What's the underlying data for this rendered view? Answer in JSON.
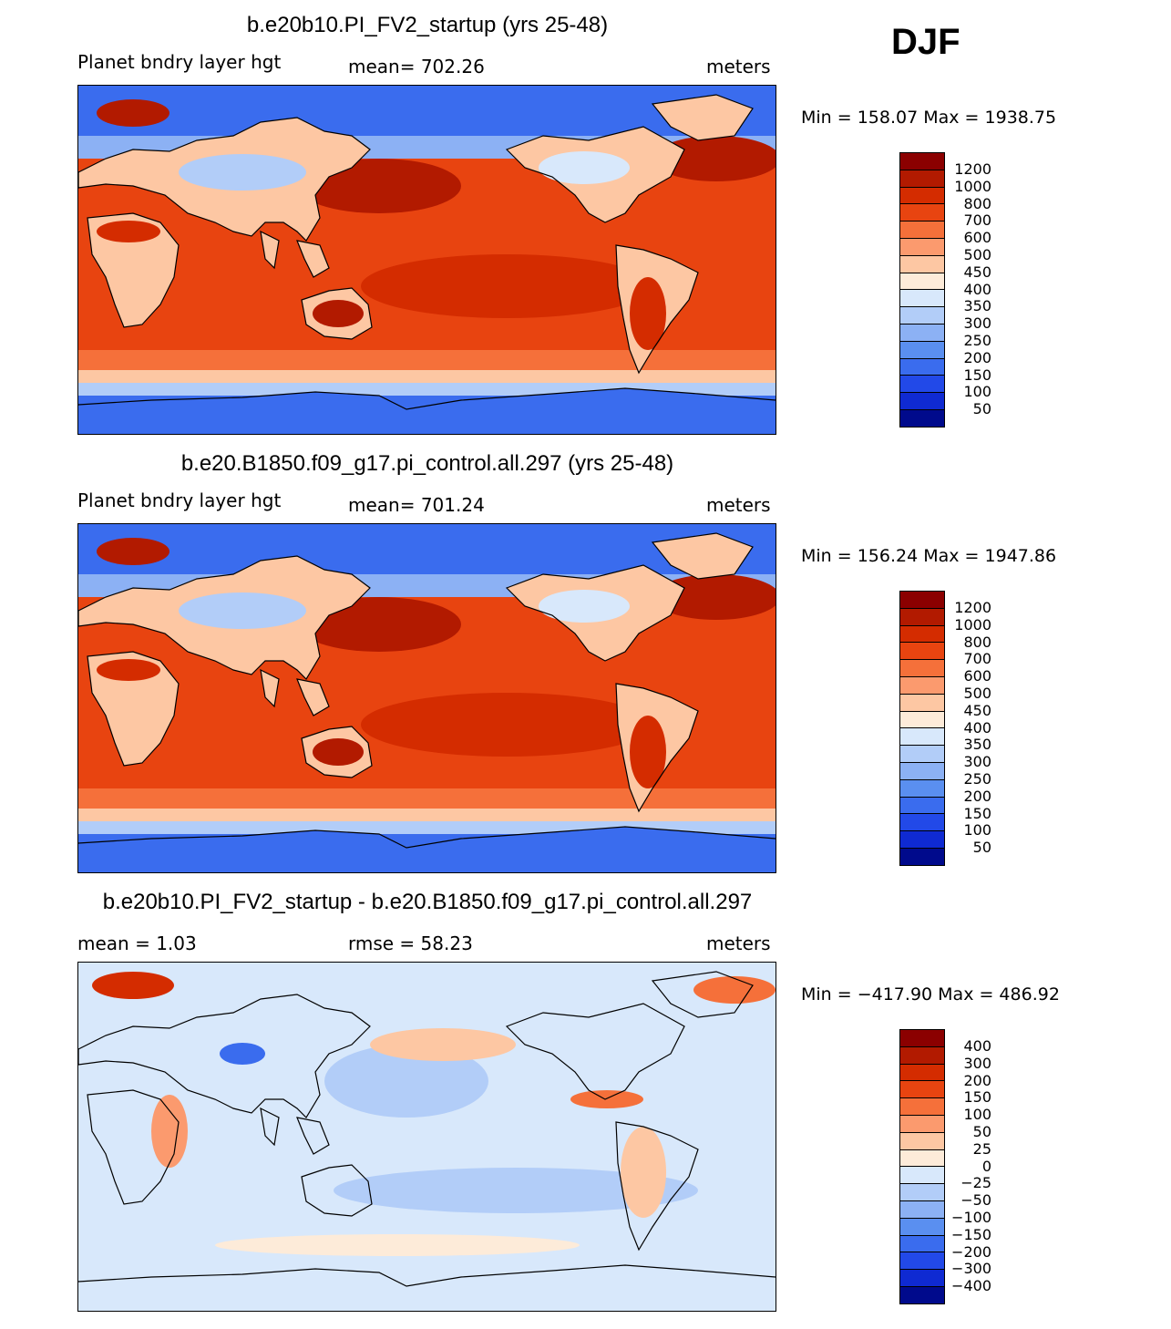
{
  "season": "DJF",
  "panels": [
    {
      "title": "b.e20b10.PI_FV2_startup (yrs 25-48)",
      "variable": "Planet bndry layer hgt",
      "stat_text": "mean=  702.26",
      "units": "meters",
      "minmax": "Min  =  158.07  Max  =  1938.75",
      "legend_labels": [
        "1200",
        "1000",
        "800",
        "700",
        "600",
        "500",
        "450",
        "400",
        "350",
        "300",
        "250",
        "200",
        "150",
        "100",
        "50"
      ],
      "legend_colors": [
        "#8b0000",
        "#b21a00",
        "#d42c00",
        "#e84410",
        "#f5703a",
        "#fb9a6e",
        "#fdc7a3",
        "#fdebd9",
        "#d8e8fb",
        "#b2cdf8",
        "#8cb1f4",
        "#5a8ff0",
        "#3a6cee",
        "#2249e8",
        "#0f2ad2",
        "#000a8c"
      ],
      "field": "base",
      "mean_value": 702.26
    },
    {
      "title": "b.e20.B1850.f09_g17.pi_control.all.297 (yrs 25-48)",
      "variable": "Planet bndry layer hgt",
      "stat_text": "mean=  701.24",
      "units": "meters",
      "minmax": "Min  =  156.24  Max  =  1947.86",
      "legend_labels": [
        "1200",
        "1000",
        "800",
        "700",
        "600",
        "500",
        "450",
        "400",
        "350",
        "300",
        "250",
        "200",
        "150",
        "100",
        "50"
      ],
      "legend_colors": [
        "#8b0000",
        "#b21a00",
        "#d42c00",
        "#e84410",
        "#f5703a",
        "#fb9a6e",
        "#fdc7a3",
        "#fdebd9",
        "#d8e8fb",
        "#b2cdf8",
        "#8cb1f4",
        "#5a8ff0",
        "#3a6cee",
        "#2249e8",
        "#0f2ad2",
        "#000a8c"
      ],
      "field": "base",
      "mean_value": 701.24
    },
    {
      "title": "b.e20b10.PI_FV2_startup - b.e20.B1850.f09_g17.pi_control.all.297",
      "mean_text": "mean =     1.03",
      "rmse_text": "rmse =    58.23",
      "units": "meters",
      "minmax": "Min  =  −417.90  Max  =  486.92",
      "legend_labels": [
        "400",
        "300",
        "200",
        "150",
        "100",
        "50",
        "25",
        "0",
        "−25",
        "−50",
        "−100",
        "−150",
        "−200",
        "−300",
        "−400"
      ],
      "legend_colors": [
        "#8b0000",
        "#b21a00",
        "#d42c00",
        "#e84410",
        "#f5703a",
        "#fb9a6e",
        "#fdc7a3",
        "#fdebd9",
        "#d8e8fb",
        "#b2cdf8",
        "#8cb1f4",
        "#5a8ff0",
        "#3a6cee",
        "#2249e8",
        "#0f2ad2",
        "#000a8c"
      ],
      "field": "diff",
      "mean_value": 1.03,
      "rmse_value": 58.23
    }
  ]
}
